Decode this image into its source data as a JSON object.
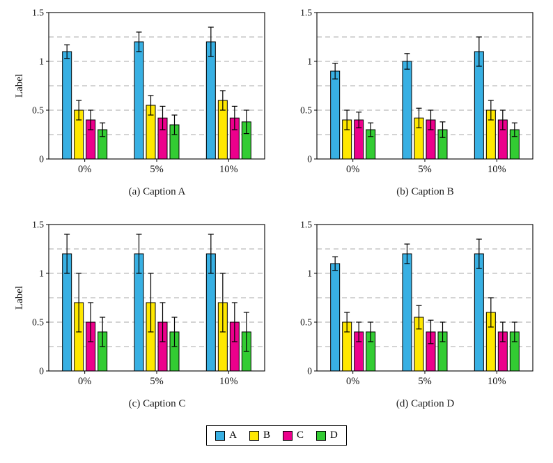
{
  "colors": {
    "A": "#38b0e3",
    "B": "#ffe800",
    "C": "#ec008c",
    "D": "#33cc33",
    "axis": "#000000",
    "grid": "#aaaaaa"
  },
  "legend": {
    "entries": [
      {
        "label": "A",
        "color": "#38b0e3"
      },
      {
        "label": "B",
        "color": "#ffe800"
      },
      {
        "label": "C",
        "color": "#ec008c"
      },
      {
        "label": "D",
        "color": "#33cc33"
      }
    ]
  },
  "chart_data": [
    {
      "id": "a",
      "type": "bar",
      "caption": "(a) Caption A",
      "ylabel": "Label",
      "ylim": [
        0,
        1.5
      ],
      "yticks": [
        0,
        0.5,
        1,
        1.5
      ],
      "ytick_labels": [
        "0",
        "0.5",
        "1",
        "1.5"
      ],
      "gridlines": [
        0.25,
        0.5,
        0.75,
        1,
        1.25
      ],
      "categories": [
        "0%",
        "5%",
        "10%"
      ],
      "series": [
        {
          "name": "A",
          "values": [
            1.1,
            1.2,
            1.2
          ],
          "errors": [
            0.07,
            0.1,
            0.15
          ]
        },
        {
          "name": "B",
          "values": [
            0.5,
            0.55,
            0.6
          ],
          "errors": [
            0.1,
            0.1,
            0.1
          ]
        },
        {
          "name": "C",
          "values": [
            0.4,
            0.42,
            0.42
          ],
          "errors": [
            0.1,
            0.12,
            0.12
          ]
        },
        {
          "name": "D",
          "values": [
            0.3,
            0.35,
            0.38
          ],
          "errors": [
            0.07,
            0.1,
            0.12
          ]
        }
      ]
    },
    {
      "id": "b",
      "type": "bar",
      "caption": "(b) Caption B",
      "ylabel": "",
      "ylim": [
        0,
        1.5
      ],
      "yticks": [
        0,
        0.5,
        1,
        1.5
      ],
      "ytick_labels": [
        "0",
        "0.5",
        "1",
        "1.5"
      ],
      "gridlines": [
        0.25,
        0.5,
        0.75,
        1,
        1.25
      ],
      "categories": [
        "0%",
        "5%",
        "10%"
      ],
      "series": [
        {
          "name": "A",
          "values": [
            0.9,
            1.0,
            1.1
          ],
          "errors": [
            0.08,
            0.08,
            0.15
          ]
        },
        {
          "name": "B",
          "values": [
            0.4,
            0.42,
            0.5
          ],
          "errors": [
            0.1,
            0.1,
            0.1
          ]
        },
        {
          "name": "C",
          "values": [
            0.4,
            0.4,
            0.4
          ],
          "errors": [
            0.08,
            0.1,
            0.1
          ]
        },
        {
          "name": "D",
          "values": [
            0.3,
            0.3,
            0.3
          ],
          "errors": [
            0.07,
            0.08,
            0.07
          ]
        }
      ]
    },
    {
      "id": "c",
      "type": "bar",
      "caption": "(c) Caption C",
      "ylabel": "Label",
      "ylim": [
        0,
        1.5
      ],
      "yticks": [
        0,
        0.5,
        1,
        1.5
      ],
      "ytick_labels": [
        "0",
        "0.5",
        "1",
        "1.5"
      ],
      "gridlines": [
        0.25,
        0.5,
        0.75,
        1,
        1.25
      ],
      "categories": [
        "0%",
        "5%",
        "10%"
      ],
      "series": [
        {
          "name": "A",
          "values": [
            1.2,
            1.2,
            1.2
          ],
          "errors": [
            0.2,
            0.2,
            0.2
          ]
        },
        {
          "name": "B",
          "values": [
            0.7,
            0.7,
            0.7
          ],
          "errors": [
            0.3,
            0.3,
            0.3
          ]
        },
        {
          "name": "C",
          "values": [
            0.5,
            0.5,
            0.5
          ],
          "errors": [
            0.2,
            0.2,
            0.2
          ]
        },
        {
          "name": "D",
          "values": [
            0.4,
            0.4,
            0.4
          ],
          "errors": [
            0.15,
            0.15,
            0.2
          ]
        }
      ]
    },
    {
      "id": "d",
      "type": "bar",
      "caption": "(d) Caption D",
      "ylabel": "",
      "ylim": [
        0,
        1.5
      ],
      "yticks": [
        0,
        0.5,
        1,
        1.5
      ],
      "ytick_labels": [
        "0",
        "0.5",
        "1",
        "1.5"
      ],
      "gridlines": [
        0.25,
        0.5,
        0.75,
        1,
        1.25
      ],
      "categories": [
        "0%",
        "5%",
        "10%"
      ],
      "series": [
        {
          "name": "A",
          "values": [
            1.1,
            1.2,
            1.2
          ],
          "errors": [
            0.07,
            0.1,
            0.15
          ]
        },
        {
          "name": "B",
          "values": [
            0.5,
            0.55,
            0.6
          ],
          "errors": [
            0.1,
            0.12,
            0.15
          ]
        },
        {
          "name": "C",
          "values": [
            0.4,
            0.4,
            0.4
          ],
          "errors": [
            0.1,
            0.12,
            0.1
          ]
        },
        {
          "name": "D",
          "values": [
            0.4,
            0.4,
            0.4
          ],
          "errors": [
            0.1,
            0.1,
            0.1
          ]
        }
      ]
    }
  ]
}
